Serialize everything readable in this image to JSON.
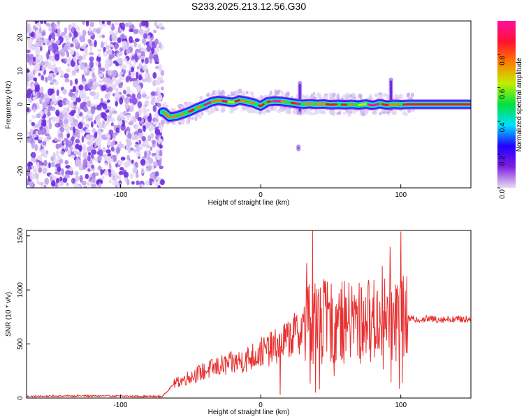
{
  "title": "S233.2025.213.12.56.G30",
  "chart_data": [
    {
      "type": "heatmap",
      "xlabel": "Height of straight line (km)",
      "ylabel": "Frequency (Hz)",
      "xlim": [
        -167,
        150
      ],
      "ylim": [
        -25,
        25
      ],
      "x_ticks": [
        -100,
        0,
        100
      ],
      "y_ticks": [
        -20,
        -10,
        0,
        10,
        20
      ],
      "noise_region_x": [
        -167,
        -70
      ],
      "ridge": {
        "x_range": [
          -70,
          149
        ],
        "points": [
          {
            "x": -69,
            "y": -2.3
          },
          {
            "x": -65,
            "y": -3.8
          },
          {
            "x": -60,
            "y": -3.5
          },
          {
            "x": -55,
            "y": -2.8
          },
          {
            "x": -50,
            "y": -2.0
          },
          {
            "x": -45,
            "y": -1.0
          },
          {
            "x": -40,
            "y": -0.2
          },
          {
            "x": -35,
            "y": 0.8
          },
          {
            "x": -30,
            "y": 1.2
          },
          {
            "x": -25,
            "y": 0.9
          },
          {
            "x": -20,
            "y": 0.6
          },
          {
            "x": -15,
            "y": 1.3
          },
          {
            "x": -10,
            "y": 0.9
          },
          {
            "x": -5,
            "y": 0.4
          },
          {
            "x": 0,
            "y": -0.5
          },
          {
            "x": 5,
            "y": 0.8
          },
          {
            "x": 10,
            "y": 1.0
          },
          {
            "x": 15,
            "y": 0.9
          },
          {
            "x": 20,
            "y": 0.6
          },
          {
            "x": 25,
            "y": 0.3
          },
          {
            "x": 30,
            "y": 0.0
          },
          {
            "x": 35,
            "y": 0.2
          },
          {
            "x": 40,
            "y": 0.0
          },
          {
            "x": 45,
            "y": 0.1
          },
          {
            "x": 50,
            "y": -0.1
          },
          {
            "x": 55,
            "y": 0.0
          },
          {
            "x": 60,
            "y": -0.1
          },
          {
            "x": 65,
            "y": 0.0
          },
          {
            "x": 70,
            "y": -0.2
          },
          {
            "x": 75,
            "y": 0.1
          },
          {
            "x": 80,
            "y": -0.3
          },
          {
            "x": 85,
            "y": 0.2
          },
          {
            "x": 90,
            "y": -0.2
          },
          {
            "x": 95,
            "y": 0.0
          },
          {
            "x": 100,
            "y": -0.1
          },
          {
            "x": 105,
            "y": 0.0
          },
          {
            "x": 149,
            "y": 0.0
          }
        ]
      },
      "spikes": [
        {
          "x": 28,
          "y_min": -3,
          "y_max": 7
        },
        {
          "x": 27,
          "y_min": -14,
          "y_max": -12
        },
        {
          "x": 93,
          "y_min": -2,
          "y_max": 8
        }
      ],
      "colorbar": {
        "label": "Normalized spectral amplitude",
        "range": [
          0,
          1
        ],
        "ticks": [
          "0.0",
          "0.2",
          "0.4",
          "0.6",
          "0.8"
        ],
        "tick_values": [
          0,
          0.2,
          0.4,
          0.6,
          0.8
        ],
        "colors": [
          "#e8dcf4",
          "#8020e0",
          "#2000ff",
          "#00e0ff",
          "#00e040",
          "#c0f000",
          "#ff8000",
          "#ff1030",
          "#ff10a0"
        ]
      }
    },
    {
      "type": "line",
      "xlabel": "Height of straight line (km)",
      "ylabel": "SNR (10 * v/v)",
      "xlim": [
        -167,
        150
      ],
      "ylim": [
        0,
        1550
      ],
      "x_ticks": [
        -100,
        0,
        100
      ],
      "y_ticks": [
        0,
        500,
        1000,
        1500
      ],
      "series": [
        {
          "color": "#e83030",
          "envelope": [
            {
              "x": -167,
              "y": 15
            },
            {
              "x": -130,
              "y": 20
            },
            {
              "x": -100,
              "y": 18
            },
            {
              "x": -80,
              "y": 15
            },
            {
              "x": -70,
              "y": 15
            },
            {
              "x": -62,
              "y": 130
            },
            {
              "x": -50,
              "y": 200
            },
            {
              "x": -40,
              "y": 250
            },
            {
              "x": -30,
              "y": 290
            },
            {
              "x": -20,
              "y": 320
            },
            {
              "x": -10,
              "y": 360
            },
            {
              "x": 0,
              "y": 420
            },
            {
              "x": 10,
              "y": 470
            },
            {
              "x": 20,
              "y": 550
            },
            {
              "x": 30,
              "y": 640
            },
            {
              "x": 35,
              "y": 700
            },
            {
              "x": 40,
              "y": 700
            },
            {
              "x": 50,
              "y": 700
            },
            {
              "x": 60,
              "y": 700
            },
            {
              "x": 70,
              "y": 710
            },
            {
              "x": 80,
              "y": 720
            },
            {
              "x": 90,
              "y": 725
            },
            {
              "x": 100,
              "y": 730
            },
            {
              "x": 110,
              "y": 730
            },
            {
              "x": 130,
              "y": 730
            },
            {
              "x": 150,
              "y": 730
            }
          ],
          "peaks": [
            {
              "x": 37,
              "y": 1550
            },
            {
              "x": 33,
              "y": 1250
            },
            {
              "x": 45,
              "y": 1100
            },
            {
              "x": 39,
              "y": 50
            },
            {
              "x": 42,
              "y": 80
            },
            {
              "x": 100,
              "y": 1540
            },
            {
              "x": 101,
              "y": 140
            },
            {
              "x": 14,
              "y": 30
            }
          ]
        }
      ]
    }
  ]
}
